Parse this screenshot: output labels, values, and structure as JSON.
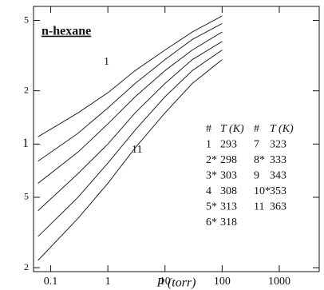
{
  "chart_data": {
    "type": "line",
    "title": "n-hexane",
    "x_label": "P (torr)",
    "annotations": [
      "1",
      "11"
    ],
    "x": [
      0.06,
      0.3,
      1,
      3,
      10,
      30,
      100
    ],
    "series": [
      {
        "color": "#222222",
        "values": [
          1.1,
          1.5,
          1.95,
          2.6,
          3.4,
          4.3,
          5.3
        ]
      },
      {
        "color": "#222222",
        "values": [
          0.8,
          1.15,
          1.6,
          2.2,
          3.0,
          3.9,
          4.8
        ]
      },
      {
        "color": "#222222",
        "values": [
          0.6,
          0.9,
          1.3,
          1.85,
          2.6,
          3.4,
          4.3
        ]
      },
      {
        "color": "#222222",
        "values": [
          0.42,
          0.68,
          1.0,
          1.5,
          2.2,
          3.0,
          3.8
        ]
      },
      {
        "color": "#222222",
        "values": [
          0.3,
          0.5,
          0.78,
          1.2,
          1.85,
          2.6,
          3.4
        ]
      },
      {
        "color": "#222222",
        "values": [
          0.22,
          0.38,
          0.6,
          0.95,
          1.5,
          2.2,
          3.0
        ]
      }
    ],
    "xlim": [
      0.05,
      5000
    ],
    "ylim": [
      0.19,
      6
    ],
    "xticks": [
      0.1,
      1,
      10,
      100,
      1000
    ],
    "yticks": [
      {
        "value": 0.2,
        "label": "2"
      },
      {
        "value": 0.5,
        "label": "5"
      },
      1,
      2,
      5
    ],
    "log_x": true,
    "log_y": true,
    "legend_table": {
      "header": [
        "#",
        "T (K)",
        "#",
        "T (K)"
      ],
      "rows": [
        [
          "1",
          "293",
          "7",
          "323"
        ],
        [
          "2*",
          "298",
          "8*",
          "333"
        ],
        [
          "3*",
          "303",
          "9",
          "343"
        ],
        [
          "4",
          "308",
          "10*",
          "353"
        ],
        [
          "5*",
          "313",
          "11",
          "363"
        ],
        [
          "6*",
          "318"
        ]
      ]
    }
  }
}
